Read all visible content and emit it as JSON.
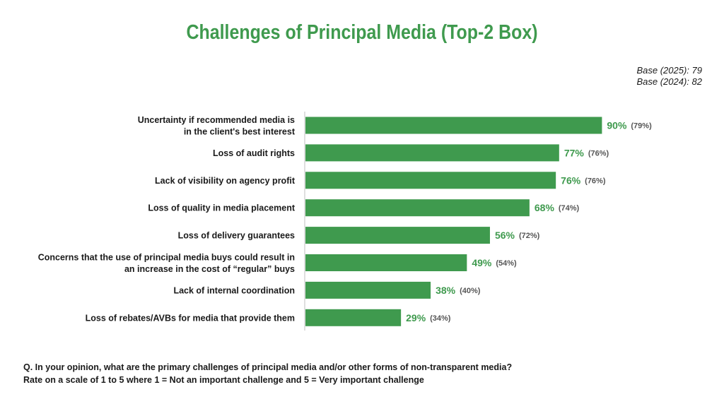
{
  "title": "Challenges of Principal Media (Top-2 Box)",
  "base": {
    "line1": "Base (2025): 79",
    "line2": "Base (2024): 82"
  },
  "question": {
    "line1": "Q. In your opinion, what are the primary challenges of principal media and/or other forms of non-transparent media?",
    "line2": "Rate on a scale of 1 to 5 where 1 = Not an important challenge and 5 = Very important challenge"
  },
  "colors": {
    "bar": "#3f9a4e",
    "value": "#3f9a4e",
    "previous": "#555555",
    "axis": "#bfbfbf"
  },
  "chart_data": {
    "type": "bar",
    "orientation": "horizontal",
    "categories": [
      [
        "Uncertainty if recommended media is",
        "in the client's best interest"
      ],
      [
        "Loss of audit rights"
      ],
      [
        "Lack of visibility on agency profit"
      ],
      [
        "Loss of quality in media placement"
      ],
      [
        "Loss of delivery guarantees"
      ],
      [
        "Concerns that the use of principal media buys could result in",
        "an increase in the cost of “regular” buys"
      ],
      [
        "Lack of internal coordination"
      ],
      [
        "Loss of rebates/AVBs for media that provide them"
      ]
    ],
    "series": [
      {
        "name": "Base (2025): 79",
        "values": [
          90,
          77,
          76,
          68,
          56,
          49,
          38,
          29
        ]
      },
      {
        "name": "Base (2024): 82",
        "values": [
          79,
          76,
          76,
          74,
          72,
          54,
          40,
          34
        ]
      }
    ],
    "value_labels": [
      "90%",
      "77%",
      "76%",
      "68%",
      "56%",
      "49%",
      "38%",
      "29%"
    ],
    "previous_labels": [
      "(79%)",
      "(76%)",
      "(76%)",
      "(74%)",
      "(72%)",
      "(54%)",
      "(40%)",
      "(34%)"
    ],
    "xlim": [
      0,
      100
    ],
    "grid": false
  }
}
